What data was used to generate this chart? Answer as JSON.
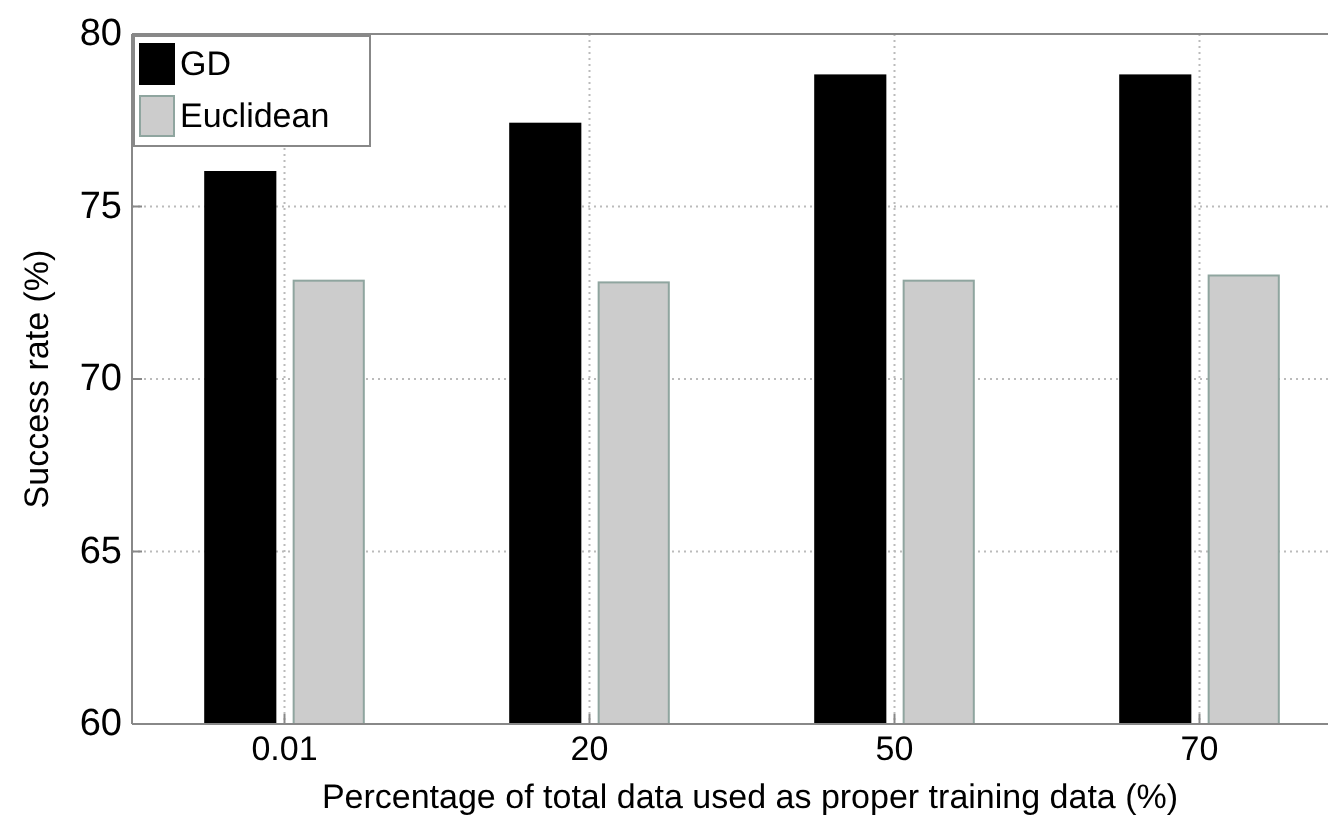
{
  "chart_data": {
    "type": "bar",
    "xlabel": "Percentage of total data used as proper training data (%)",
    "ylabel": "Success rate (%)",
    "categories": [
      "0.01",
      "20",
      "50",
      "70"
    ],
    "series": [
      {
        "name": "GD",
        "color": "#000000",
        "values": [
          76.0,
          77.4,
          78.8,
          78.8
        ]
      },
      {
        "name": "Euclidean",
        "color": "#cccccc",
        "values": [
          72.85,
          72.8,
          72.85,
          73.0
        ]
      }
    ],
    "ylim": [
      60,
      80
    ],
    "yticks": [
      60,
      65,
      70,
      75,
      80
    ],
    "grid": true,
    "legend": "top left"
  }
}
